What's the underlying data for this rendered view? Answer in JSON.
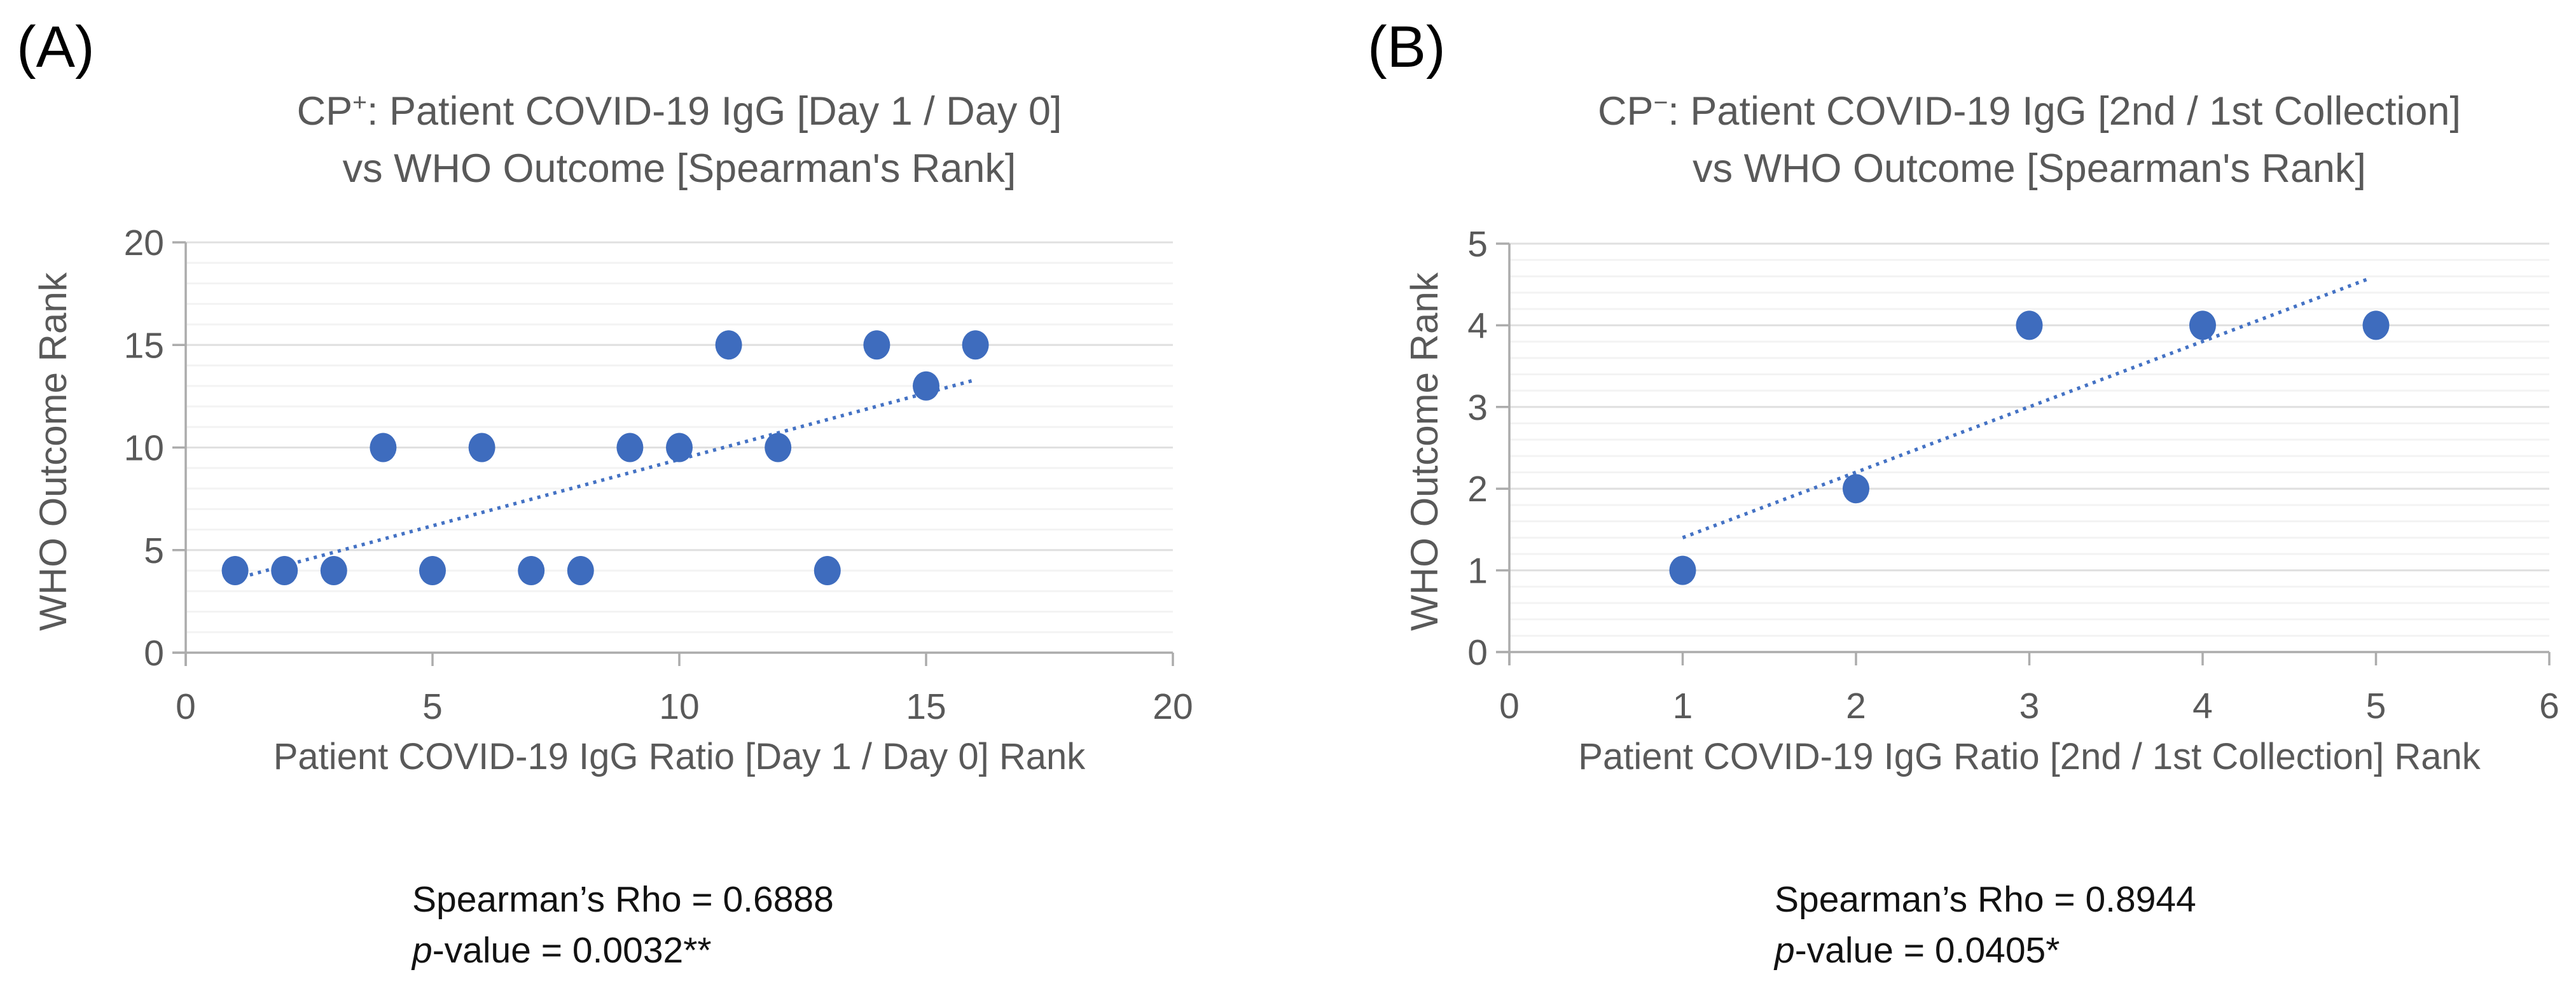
{
  "colors": {
    "marker": "#3E6CBE",
    "trendline": "#4472C4",
    "axis_line": "#ACACAC",
    "grid_major": "#E0E0E0",
    "grid_minor": "#F3F3F3",
    "text_gray": "#595959",
    "text_black": "#121212"
  },
  "panels": [
    {
      "label": "(A)",
      "title_prefix": "CP",
      "title_sup": "+",
      "title_line1_rest": ": Patient COVID-19 IgG [Day 1 / Day 0]",
      "title_line2": "vs WHO Outcome [Spearman's Rank]",
      "y_axis_title": "WHO Outcome Rank",
      "x_axis_title": "Patient COVID-19 IgG Ratio [Day 1 / Day 0] Rank",
      "stats_line1": "Spearman’s Rho = 0.6888",
      "stats_p": "p",
      "stats_line2_rest": "-value = 0.0032**"
    },
    {
      "label": "(B)",
      "title_prefix": "CP",
      "title_sup": "−",
      "title_line1_rest": ": Patient COVID-19 IgG [2nd / 1st Collection]",
      "title_line2": "vs WHO Outcome [Spearman's Rank]",
      "y_axis_title": "WHO Outcome Rank",
      "x_axis_title": "Patient COVID-19 IgG Ratio [2nd / 1st Collection] Rank",
      "stats_line1": "Spearman’s Rho = 0.8944",
      "stats_p": "p",
      "stats_line2_rest": "-value = 0.0405*"
    }
  ],
  "chart_data": [
    {
      "type": "scatter",
      "title": "CP+: Patient COVID-19 IgG [Day 1 / Day 0] vs WHO Outcome [Spearman's Rank]",
      "xlabel": "Patient COVID-19 IgG Ratio [Day 1 / Day 0] Rank",
      "ylabel": "WHO Outcome Rank",
      "xlim": [
        0,
        20
      ],
      "ylim": [
        0,
        20
      ],
      "x_ticks": [
        0,
        5,
        10,
        15,
        20
      ],
      "y_ticks": [
        0,
        5,
        10,
        15,
        20
      ],
      "y_minor_step": 1,
      "grid": "horizontal-only",
      "legend": "none",
      "points": [
        [
          1,
          4
        ],
        [
          2,
          4
        ],
        [
          3,
          4
        ],
        [
          4,
          10
        ],
        [
          5,
          4
        ],
        [
          6,
          10
        ],
        [
          7,
          4
        ],
        [
          8,
          4
        ],
        [
          9,
          10
        ],
        [
          10,
          10
        ],
        [
          11,
          15
        ],
        [
          12,
          10
        ],
        [
          13,
          4
        ],
        [
          14,
          15
        ],
        [
          15,
          13
        ],
        [
          16,
          15
        ]
      ],
      "trendline": {
        "style": "dotted",
        "x1": 1.3,
        "y1": 3.79,
        "x2": 16.0,
        "y2": 13.3
      },
      "spearman_rho": 0.6888,
      "p_value": "0.0032**"
    },
    {
      "type": "scatter",
      "title": "CP-: Patient COVID-19 IgG [2nd / 1st Collection] vs WHO Outcome [Spearman's Rank]",
      "xlabel": "Patient COVID-19 IgG Ratio [2nd / 1st Collection] Rank",
      "ylabel": "WHO Outcome Rank",
      "xlim": [
        0,
        6
      ],
      "ylim": [
        0,
        5
      ],
      "x_ticks": [
        0,
        1,
        2,
        3,
        4,
        5,
        6
      ],
      "y_ticks": [
        0,
        1,
        2,
        3,
        4,
        5
      ],
      "y_minor_step": 0.2,
      "grid": "horizontal-only",
      "legend": "none",
      "points": [
        [
          1,
          1
        ],
        [
          2,
          2
        ],
        [
          3,
          4
        ],
        [
          4,
          4
        ],
        [
          5,
          4
        ]
      ],
      "trendline": {
        "style": "dotted",
        "x1": 1.0,
        "y1": 1.4,
        "x2": 4.97,
        "y2": 4.58
      },
      "spearman_rho": 0.8944,
      "p_value": "0.0405*"
    }
  ]
}
